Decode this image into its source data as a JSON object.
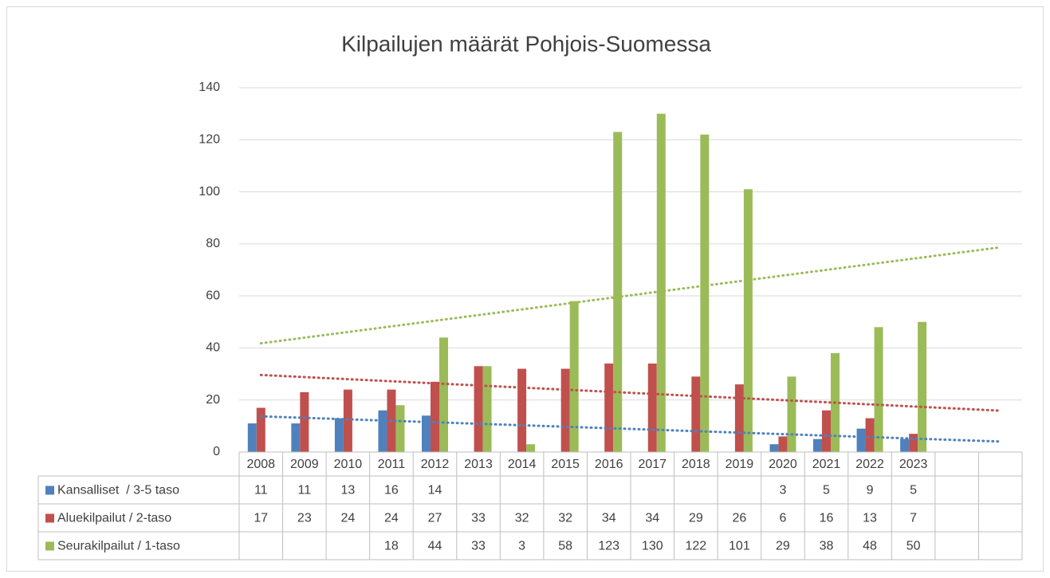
{
  "chart_data": {
    "type": "bar",
    "title": "Kilpailujen määrät Pohjois-Suomessa",
    "categories": [
      "2008",
      "2009",
      "2010",
      "2011",
      "2012",
      "2013",
      "2014",
      "2015",
      "2016",
      "2017",
      "2018",
      "2019",
      "2020",
      "2021",
      "2022",
      "2023",
      null,
      null
    ],
    "series": [
      {
        "name": "Kansalliset  / 3-5 taso",
        "color": "#4F81BD",
        "trendline": true,
        "values": [
          11,
          11,
          13,
          16,
          14,
          null,
          null,
          null,
          null,
          null,
          null,
          null,
          3,
          5,
          9,
          5,
          null,
          null
        ]
      },
      {
        "name": "Aluekilpailut / 2-taso",
        "color": "#C0504D",
        "trendline": true,
        "values": [
          17,
          23,
          24,
          24,
          27,
          33,
          32,
          32,
          34,
          34,
          29,
          26,
          6,
          16,
          13,
          7,
          null,
          null
        ]
      },
      {
        "name": "Seurakilpailut / 1-taso",
        "color": "#9BBB59",
        "trendline": true,
        "values": [
          null,
          null,
          null,
          18,
          44,
          33,
          3,
          58,
          123,
          130,
          122,
          101,
          29,
          38,
          48,
          50,
          null,
          null
        ]
      }
    ],
    "ylim": [
      0,
      140
    ],
    "yticks": [
      0,
      20,
      40,
      60,
      80,
      100,
      120,
      140
    ],
    "grid": true,
    "data_table": true
  }
}
